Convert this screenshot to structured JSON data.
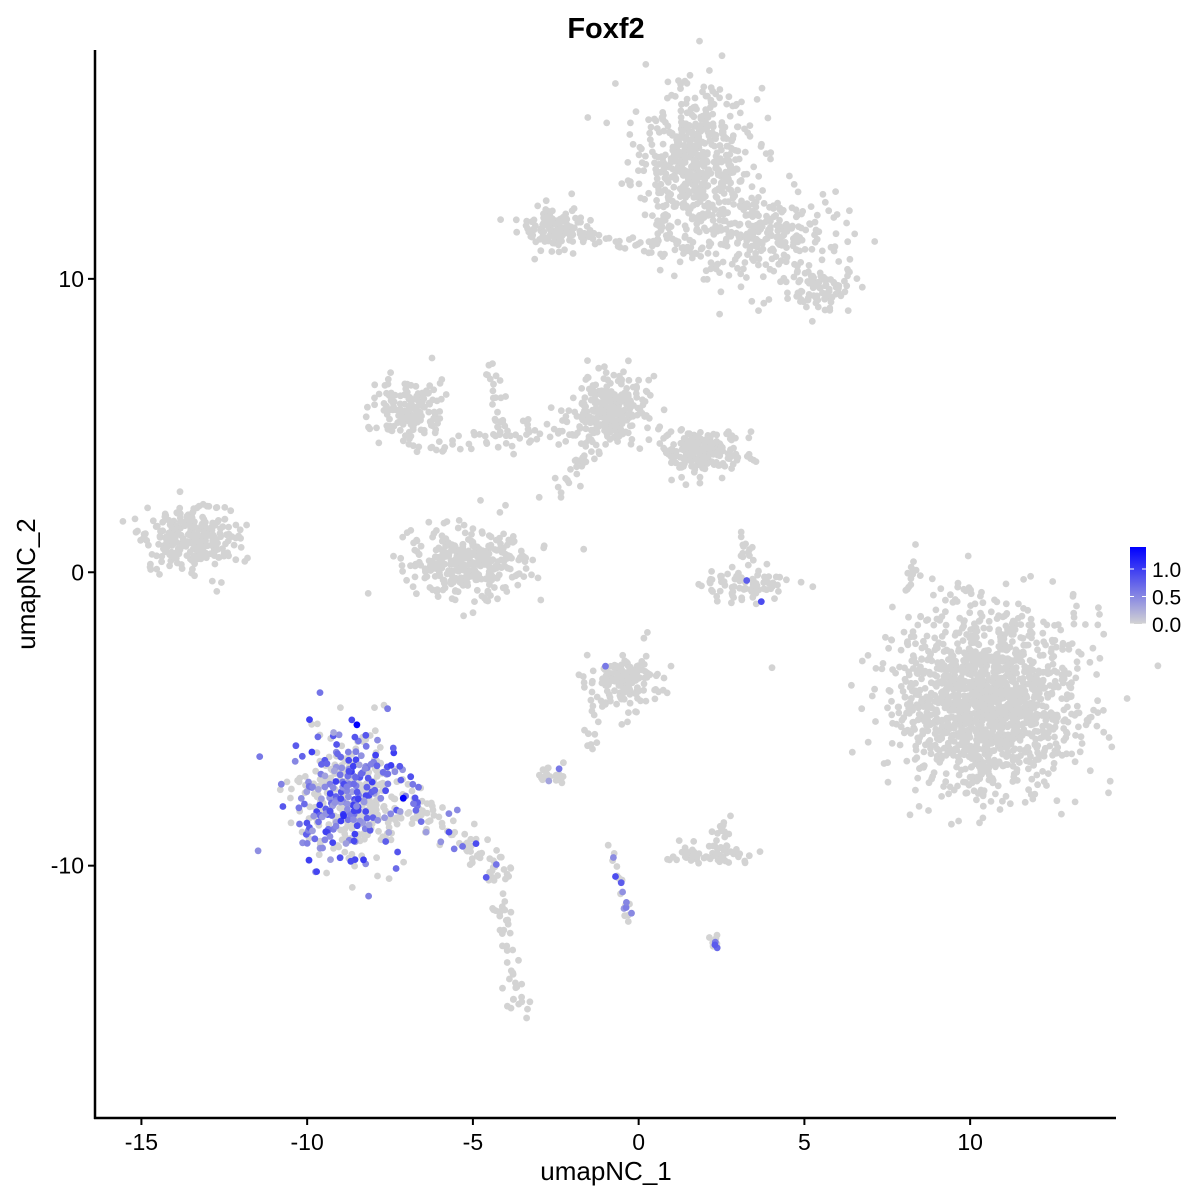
{
  "chart_data": {
    "type": "scatter",
    "title": "Foxf2",
    "xlabel": "umapNC_1",
    "ylabel": "umapNC_2",
    "xlim": [
      -16.4,
      14.4
    ],
    "ylim": [
      -18.6,
      17.8
    ],
    "x_ticks": [
      -15,
      -10,
      -5,
      0,
      5,
      10
    ],
    "x_tick_labels": [
      "-15",
      "-10",
      "-5",
      "0",
      "5",
      "10"
    ],
    "y_ticks": [
      -10,
      0,
      10
    ],
    "y_tick_labels": [
      "-10",
      "0",
      "10"
    ],
    "grid": false,
    "legend": {
      "placement": "right",
      "type": "colorbar",
      "range": [
        0,
        1.4
      ],
      "ticks": [
        0,
        0.5,
        1.0
      ],
      "tick_labels": [
        "0.0",
        "0.5",
        "1.0"
      ],
      "low_color": "#D3D3D3",
      "high_color": "#0000FF"
    },
    "clusters": [
      {
        "center": [
          1.6,
          14.0
        ],
        "spread": [
          0.9,
          1.3
        ],
        "count": 520,
        "expr_fraction": 0
      },
      {
        "center": [
          3.8,
          11.5
        ],
        "spread": [
          1.2,
          0.8
        ],
        "count": 260,
        "expr_fraction": 0
      },
      {
        "center": [
          5.5,
          9.6
        ],
        "spread": [
          0.5,
          0.4
        ],
        "count": 80,
        "expr_fraction": 0
      },
      {
        "center": [
          -2.5,
          11.7
        ],
        "spread": [
          0.5,
          0.35
        ],
        "count": 130,
        "expr_fraction": 0
      },
      {
        "center": [
          -6.9,
          5.6
        ],
        "spread": [
          0.5,
          0.5
        ],
        "count": 150,
        "expr_fraction": 0
      },
      {
        "center": [
          -0.8,
          5.5
        ],
        "spread": [
          0.5,
          0.6
        ],
        "count": 260,
        "expr_fraction": 0
      },
      {
        "center": [
          1.9,
          4.1
        ],
        "spread": [
          0.6,
          0.4
        ],
        "count": 200,
        "expr_fraction": 0
      },
      {
        "center": [
          -5.1,
          0.3
        ],
        "spread": [
          0.9,
          0.6
        ],
        "count": 320,
        "expr_fraction": 0
      },
      {
        "center": [
          -13.5,
          1.2
        ],
        "spread": [
          0.7,
          0.6
        ],
        "count": 260,
        "expr_fraction": 0
      },
      {
        "center": [
          3.3,
          -0.4
        ],
        "spread": [
          0.7,
          0.25
        ],
        "count": 80,
        "expr_fraction": 0.01
      },
      {
        "center": [
          10.5,
          -4.4
        ],
        "spread": [
          1.35,
          1.5
        ],
        "count": 1500,
        "expr_fraction": 0
      },
      {
        "center": [
          -0.4,
          -3.7
        ],
        "spread": [
          0.55,
          0.5
        ],
        "count": 150,
        "expr_fraction": 0.01
      },
      {
        "center": [
          -8.7,
          -7.6
        ],
        "spread": [
          0.9,
          1.1
        ],
        "count": 470,
        "expr_fraction": 0.45
      },
      {
        "center": [
          2.3,
          -9.6
        ],
        "spread": [
          0.6,
          0.2
        ],
        "count": 60,
        "expr_fraction": 0
      },
      {
        "center": [
          -2.6,
          -6.9
        ],
        "spread": [
          0.25,
          0.15
        ],
        "count": 20,
        "expr_fraction": 0.05
      }
    ],
    "trails": [
      {
        "from": [
          -2.5,
          11.6
        ],
        "to": [
          0.7,
          11.0
        ],
        "count": 40,
        "jitter": 0.12,
        "expr_fraction": 0
      },
      {
        "from": [
          0.5,
          12.0
        ],
        "to": [
          1.6,
          10.8
        ],
        "count": 30,
        "jitter": 0.2,
        "expr_fraction": 0
      },
      {
        "from": [
          -6.5,
          4.3
        ],
        "to": [
          -0.5,
          5.0
        ],
        "count": 90,
        "jitter": 0.3,
        "expr_fraction": 0
      },
      {
        "from": [
          -4.6,
          7.4
        ],
        "to": [
          -4.1,
          4.5
        ],
        "count": 25,
        "jitter": 0.12,
        "expr_fraction": 0
      },
      {
        "from": [
          -2.5,
          2.5
        ],
        "to": [
          -1.4,
          4.5
        ],
        "count": 30,
        "jitter": 0.2,
        "expr_fraction": 0
      },
      {
        "from": [
          -7.2,
          -7.7
        ],
        "to": [
          -4.0,
          -10.3
        ],
        "count": 80,
        "jitter": 0.25,
        "expr_fraction": 0.12
      },
      {
        "from": [
          -4.3,
          -10.5
        ],
        "to": [
          -3.6,
          -15.0
        ],
        "count": 50,
        "jitter": 0.2,
        "expr_fraction": 0
      },
      {
        "from": [
          -0.9,
          -9.2
        ],
        "to": [
          -0.3,
          -11.8
        ],
        "count": 25,
        "jitter": 0.08,
        "expr_fraction": 0.4
      },
      {
        "from": [
          -1.0,
          -3.0
        ],
        "to": [
          -1.5,
          -6.0
        ],
        "count": 18,
        "jitter": 0.1,
        "expr_fraction": 0
      },
      {
        "from": [
          2.3,
          -12.4
        ],
        "to": [
          2.4,
          -12.9
        ],
        "count": 10,
        "jitter": 0.08,
        "expr_fraction": 0.4
      },
      {
        "from": [
          8.1,
          -0.8
        ],
        "to": [
          8.3,
          0.9
        ],
        "count": 12,
        "jitter": 0.06,
        "expr_fraction": 0
      },
      {
        "from": [
          2.3,
          -8.9
        ],
        "to": [
          2.8,
          -8.4
        ],
        "count": 12,
        "jitter": 0.15,
        "expr_fraction": 0
      },
      {
        "from": [
          3.3,
          0.3
        ],
        "to": [
          3.3,
          1.4
        ],
        "count": 14,
        "jitter": 0.15,
        "expr_fraction": 0
      }
    ],
    "highlighted_points": [
      {
        "x": -8.5,
        "y": -5.2,
        "value": 1.4
      },
      {
        "x": -7.1,
        "y": -7.7,
        "value": 1.4
      },
      {
        "x": -8.9,
        "y": -8.3,
        "value": 1.1
      },
      {
        "x": -8.3,
        "y": -9.8,
        "value": 1.0
      },
      {
        "x": 3.7,
        "y": -1.0,
        "value": 0.9
      },
      {
        "x": -4.6,
        "y": -10.4,
        "value": 0.8
      },
      {
        "x": -1.0,
        "y": -3.2,
        "value": 0.6
      },
      {
        "x": -2.4,
        "y": -6.7,
        "value": 0.6
      },
      {
        "x": 2.3,
        "y": -12.7,
        "value": 0.8
      }
    ]
  }
}
